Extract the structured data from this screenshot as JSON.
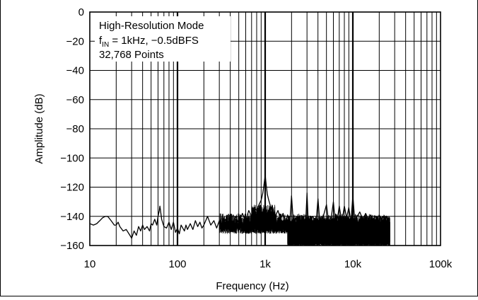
{
  "chart_data": {
    "type": "line",
    "x_scale": "log",
    "xlim": [
      10,
      100000
    ],
    "ylim": [
      -160,
      0
    ],
    "xlabel": "Frequency (Hz)",
    "ylabel": "Amplitude (dB)",
    "x_ticks": [
      10,
      100,
      1000,
      10000,
      100000
    ],
    "x_tick_labels": [
      "10",
      "100",
      "1k",
      "10k",
      "100k"
    ],
    "y_ticks": [
      0,
      -20,
      -40,
      -60,
      -80,
      -100,
      -120,
      -140,
      -160
    ],
    "y_tick_labels": [
      "0",
      "−20",
      "−40",
      "−60",
      "−80",
      "−100",
      "−120",
      "−140",
      "−160"
    ],
    "grid": true,
    "annotation": {
      "line1": "High-Resolution Mode",
      "line2_prefix": "f",
      "line2_sub": "IN",
      "line2_rest": " = 1kHz, −0.5dBFS",
      "line3": "32,768 Points"
    },
    "series": [
      {
        "color": "#000000",
        "points": [
          [
            10,
            -145
          ],
          [
            11,
            -146
          ],
          [
            12,
            -145
          ],
          [
            13,
            -143
          ],
          [
            14,
            -141
          ],
          [
            15,
            -140
          ],
          [
            16,
            -140
          ],
          [
            17,
            -142
          ],
          [
            18,
            -144
          ],
          [
            19,
            -146
          ],
          [
            20,
            -146
          ],
          [
            21,
            -144
          ],
          [
            22,
            -147
          ],
          [
            24,
            -150
          ],
          [
            26,
            -149
          ],
          [
            28,
            -152
          ],
          [
            30,
            -155
          ],
          [
            32,
            -150
          ],
          [
            34,
            -153
          ],
          [
            36,
            -147
          ],
          [
            38,
            -150
          ],
          [
            40,
            -146
          ],
          [
            42,
            -149
          ],
          [
            45,
            -147
          ],
          [
            48,
            -150
          ],
          [
            50,
            -145
          ],
          [
            52,
            -146
          ],
          [
            55,
            -142
          ],
          [
            58,
            -146
          ],
          [
            60,
            -140
          ],
          [
            62,
            -136
          ],
          [
            63,
            -133
          ],
          [
            64,
            -136
          ],
          [
            66,
            -142
          ],
          [
            70,
            -147
          ],
          [
            75,
            -148
          ],
          [
            80,
            -144
          ],
          [
            85,
            -149
          ],
          [
            90,
            -144
          ],
          [
            95,
            -151
          ],
          [
            100,
            -148
          ],
          [
            105,
            -152
          ],
          [
            110,
            -146
          ],
          [
            120,
            -150
          ],
          [
            125,
            -146
          ],
          [
            130,
            -149
          ],
          [
            140,
            -145
          ],
          [
            150,
            -149
          ],
          [
            160,
            -143
          ],
          [
            170,
            -147
          ],
          [
            180,
            -144
          ],
          [
            190,
            -148
          ],
          [
            200,
            -146
          ],
          [
            220,
            -140
          ],
          [
            240,
            -146
          ],
          [
            260,
            -143
          ],
          [
            280,
            -148
          ],
          [
            300,
            -143
          ],
          [
            320,
            -149
          ],
          [
            350,
            -142
          ],
          [
            380,
            -148
          ],
          [
            400,
            -140
          ],
          [
            430,
            -146
          ],
          [
            460,
            -140
          ],
          [
            500,
            -145
          ],
          [
            550,
            -138
          ],
          [
            600,
            -143
          ],
          [
            650,
            -136
          ],
          [
            700,
            -140
          ],
          [
            750,
            -134
          ],
          [
            800,
            -136
          ],
          [
            850,
            -132
          ],
          [
            900,
            -129
          ],
          [
            940,
            -124
          ],
          [
            970,
            -118
          ],
          [
            990,
            -114
          ],
          [
            1000,
            -111
          ],
          [
            1010,
            -114
          ],
          [
            1030,
            -119
          ],
          [
            1060,
            -125
          ],
          [
            1100,
            -129
          ],
          [
            1150,
            -133
          ],
          [
            1200,
            -137
          ],
          [
            1300,
            -140
          ],
          [
            1400,
            -136
          ],
          [
            1500,
            -142
          ],
          [
            1600,
            -138
          ],
          [
            1700,
            -144
          ],
          [
            1800,
            -139
          ],
          [
            1900,
            -146
          ],
          [
            2000,
            -126
          ],
          [
            2100,
            -145
          ],
          [
            2300,
            -140
          ],
          [
            2500,
            -144
          ],
          [
            2700,
            -141
          ],
          [
            2900,
            -144
          ],
          [
            3000,
            -124
          ],
          [
            3100,
            -144
          ],
          [
            3500,
            -140
          ],
          [
            3800,
            -145
          ],
          [
            4000,
            -128
          ],
          [
            4200,
            -144
          ],
          [
            4600,
            -140
          ],
          [
            5000,
            -132
          ],
          [
            5300,
            -144
          ],
          [
            5700,
            -140
          ],
          [
            6000,
            -130
          ],
          [
            6300,
            -144
          ],
          [
            6700,
            -141
          ],
          [
            7000,
            -133
          ],
          [
            7500,
            -144
          ],
          [
            8000,
            -133
          ],
          [
            8500,
            -141
          ],
          [
            9000,
            -134
          ],
          [
            9500,
            -144
          ],
          [
            10000,
            -126
          ],
          [
            10500,
            -142
          ],
          [
            11000,
            -141
          ],
          [
            12000,
            -137
          ],
          [
            13000,
            -142
          ],
          [
            14000,
            -138
          ],
          [
            15000,
            -142
          ],
          [
            16000,
            -139
          ],
          [
            17000,
            -142
          ],
          [
            18000,
            -140
          ],
          [
            19000,
            -142
          ],
          [
            20000,
            -139
          ],
          [
            21000,
            -142
          ],
          [
            22000,
            -140
          ],
          [
            23000,
            -142
          ],
          [
            24000,
            -140
          ],
          [
            25000,
            -142
          ],
          [
            26000,
            -141
          ]
        ]
      }
    ]
  }
}
